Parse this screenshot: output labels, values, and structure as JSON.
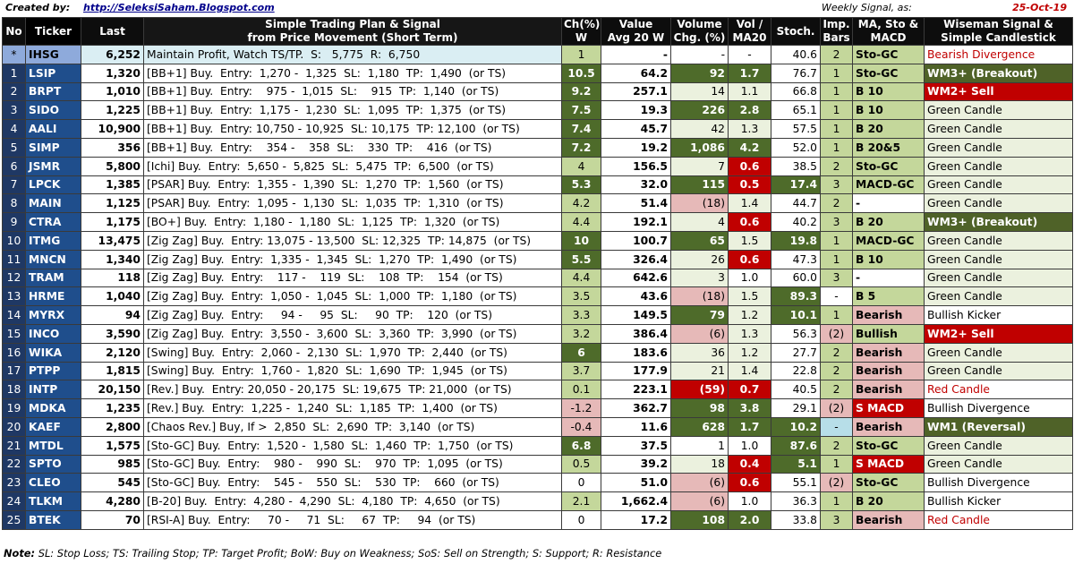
{
  "header": {
    "created_label": "Created by:",
    "url": "http://SeleksiSaham.Blogspot.com",
    "weekly_label": "Weekly Signal, as:",
    "date": "25-Oct-19"
  },
  "columns": {
    "no": "No",
    "ticker": "Ticker",
    "last": "Last",
    "plan_line1": "Simple Trading Plan & Signal",
    "plan_line2": "from Price Movement (Short Term)",
    "ch_line1": "Ch(%)",
    "ch_line2": "W",
    "value_line1": "Value",
    "value_line2": "Avg 20 W",
    "volume_line1": "Volume",
    "volume_line2": "Chg. (%)",
    "vol_line1": "Vol /",
    "vol_line2": "MA20",
    "stoch": "Stoch.",
    "imp_line1": "Imp.",
    "imp_line2": "Bars",
    "ma_line1": "MA, Sto &",
    "ma_line2": "MACD",
    "wise_line1": "Wiseman Signal &",
    "wise_line2": "Simple Candlestick"
  },
  "rows": [
    {
      "no": "*",
      "ticker": "IHSG",
      "last": "6,252",
      "plan": "Maintain Profit, Watch TS/TP.  S:   5,775  R:  6,750",
      "ch": "1",
      "value": "-",
      "volume": "-",
      "vol_ma": "-",
      "stoch": "40.6",
      "imp": "2",
      "ma": "Sto-GC",
      "wise": "Bearish Divergence",
      "idx": true,
      "cls": {
        "ch": "c-lg",
        "vol": "c-wht",
        "vma": "c-wht",
        "sto": "c-wht",
        "imp": "c-lg",
        "ma": "c-lg",
        "wise": "c-wht c-redtxt"
      }
    },
    {
      "no": "1",
      "ticker": "LSIP",
      "last": "1,320",
      "plan": "[BB+1] Buy.  Entry:  1,270 -  1,325  SL:  1,180  TP:  1,490  (or TS)",
      "ch": "10.5",
      "value": "64.2",
      "volume": "92",
      "vol_ma": "1.7",
      "stoch": "76.7",
      "imp": "1",
      "ma": "Sto-GC",
      "wise": "WM3+ (Breakout)",
      "cls": {
        "ch": "c-dg",
        "vol": "c-dg",
        "vma": "c-dg",
        "sto": "c-wht",
        "imp": "c-lg",
        "ma": "c-lg",
        "wise": "c-olive"
      }
    },
    {
      "no": "2",
      "ticker": "BRPT",
      "last": "1,010",
      "plan": "[BB+1] Buy.  Entry:    975 -  1,015  SL:    915  TP:  1,140  (or TS)",
      "ch": "9.2",
      "value": "257.1",
      "volume": "14",
      "vol_ma": "1.1",
      "stoch": "66.8",
      "imp": "1",
      "ma": "B 10",
      "wise": "WM2+ Sell",
      "cls": {
        "ch": "c-dg",
        "vol": "c-pale",
        "vma": "c-pale",
        "sto": "c-wht",
        "imp": "c-lg",
        "ma": "c-lg",
        "wise": "c-red"
      }
    },
    {
      "no": "3",
      "ticker": "SIDO",
      "last": "1,225",
      "plan": "[BB+1] Buy.  Entry:  1,175 -  1,230  SL:  1,095  TP:  1,375  (or TS)",
      "ch": "7.5",
      "value": "19.3",
      "volume": "226",
      "vol_ma": "2.8",
      "stoch": "65.1",
      "imp": "1",
      "ma": "B 10",
      "wise": "Green Candle",
      "cls": {
        "ch": "c-dg",
        "vol": "c-dg",
        "vma": "c-dg",
        "sto": "c-wht",
        "imp": "c-lg",
        "ma": "c-lg",
        "wise": "c-pale"
      }
    },
    {
      "no": "4",
      "ticker": "AALI",
      "last": "10,900",
      "plan": "[BB+1] Buy.  Entry: 10,750 - 10,925  SL: 10,175  TP: 12,100  (or TS)",
      "ch": "7.4",
      "value": "45.7",
      "volume": "42",
      "vol_ma": "1.3",
      "stoch": "57.5",
      "imp": "1",
      "ma": "B 20",
      "wise": "Green Candle",
      "cls": {
        "ch": "c-dg",
        "vol": "c-pale",
        "vma": "c-pale",
        "sto": "c-wht",
        "imp": "c-lg",
        "ma": "c-lg",
        "wise": "c-pale"
      }
    },
    {
      "no": "5",
      "ticker": "SIMP",
      "last": "356",
      "plan": "[BB+1] Buy.  Entry:    354 -    358  SL:    330  TP:    416  (or TS)",
      "ch": "7.2",
      "value": "19.2",
      "volume": "1,086",
      "vol_ma": "4.2",
      "stoch": "52.0",
      "imp": "1",
      "ma": "B 20&5",
      "wise": "Green Candle",
      "cls": {
        "ch": "c-dg",
        "vol": "c-dg",
        "vma": "c-dg",
        "sto": "c-wht",
        "imp": "c-lg",
        "ma": "c-lg",
        "wise": "c-pale"
      }
    },
    {
      "no": "6",
      "ticker": "JSMR",
      "last": "5,800",
      "plan": "[Ichi] Buy.  Entry:  5,650 -  5,825  SL:  5,475  TP:  6,500  (or TS)",
      "ch": "4",
      "value": "156.5",
      "volume": "7",
      "vol_ma": "0.6",
      "stoch": "38.5",
      "imp": "2",
      "ma": "Sto-GC",
      "wise": "Green Candle",
      "cls": {
        "ch": "c-lg",
        "vol": "c-pale",
        "vma": "c-red",
        "sto": "c-wht",
        "imp": "c-lg",
        "ma": "c-lg",
        "wise": "c-pale"
      }
    },
    {
      "no": "7",
      "ticker": "LPCK",
      "last": "1,385",
      "plan": "[PSAR] Buy.  Entry:  1,355 -  1,390  SL:  1,270  TP:  1,560  (or TS)",
      "ch": "5.3",
      "value": "32.0",
      "volume": "115",
      "vol_ma": "0.5",
      "stoch": "17.4",
      "imp": "3",
      "ma": "MACD-GC",
      "wise": "Green Candle",
      "cls": {
        "ch": "c-dg",
        "vol": "c-dg",
        "vma": "c-red",
        "sto": "c-dg",
        "imp": "c-lg",
        "ma": "c-lg",
        "wise": "c-pale"
      }
    },
    {
      "no": "8",
      "ticker": "MAIN",
      "last": "1,125",
      "plan": "[PSAR] Buy.  Entry:  1,095 -  1,130  SL:  1,035  TP:  1,310  (or TS)",
      "ch": "4.2",
      "value": "51.4",
      "volume": "(18)",
      "vol_ma": "1.4",
      "stoch": "44.7",
      "imp": "2",
      "ma": "-",
      "wise": "Green Candle",
      "cls": {
        "ch": "c-lg",
        "vol": "c-pink",
        "vma": "c-pale",
        "sto": "c-wht",
        "imp": "c-lg",
        "ma": "c-wht",
        "wise": "c-pale"
      }
    },
    {
      "no": "9",
      "ticker": "CTRA",
      "last": "1,175",
      "plan": "[BO+] Buy.  Entry:  1,180 -  1,180  SL:  1,125  TP:  1,320  (or TS)",
      "ch": "4.4",
      "value": "192.1",
      "volume": "4",
      "vol_ma": "0.6",
      "stoch": "40.2",
      "imp": "3",
      "ma": "B 20",
      "wise": "WM3+ (Breakout)",
      "cls": {
        "ch": "c-lg",
        "vol": "c-pale",
        "vma": "c-red",
        "sto": "c-wht",
        "imp": "c-lg",
        "ma": "c-lg",
        "wise": "c-olive"
      }
    },
    {
      "no": "10",
      "ticker": "ITMG",
      "last": "13,475",
      "plan": "[Zig Zag] Buy.  Entry: 13,075 - 13,500  SL: 12,325  TP: 14,875  (or TS)",
      "ch": "10",
      "value": "100.7",
      "volume": "65",
      "vol_ma": "1.5",
      "stoch": "19.8",
      "imp": "1",
      "ma": "MACD-GC",
      "wise": "Green Candle",
      "cls": {
        "ch": "c-dg",
        "vol": "c-dg",
        "vma": "c-pale",
        "sto": "c-dg",
        "imp": "c-lg",
        "ma": "c-lg",
        "wise": "c-pale"
      }
    },
    {
      "no": "11",
      "ticker": "MNCN",
      "last": "1,340",
      "plan": "[Zig Zag] Buy.  Entry:  1,335 -  1,345  SL:  1,270  TP:  1,490  (or TS)",
      "ch": "5.5",
      "value": "326.4",
      "volume": "26",
      "vol_ma": "0.6",
      "stoch": "47.3",
      "imp": "1",
      "ma": "B 10",
      "wise": "Green Candle",
      "cls": {
        "ch": "c-dg",
        "vol": "c-pale",
        "vma": "c-red",
        "sto": "c-wht",
        "imp": "c-lg",
        "ma": "c-lg",
        "wise": "c-pale"
      }
    },
    {
      "no": "12",
      "ticker": "TRAM",
      "last": "118",
      "plan": "[Zig Zag] Buy.  Entry:    117 -    119  SL:    108  TP:    154  (or TS)",
      "ch": "4.4",
      "value": "642.6",
      "volume": "3",
      "vol_ma": "1.0",
      "stoch": "60.0",
      "imp": "3",
      "ma": "-",
      "wise": "Green Candle",
      "cls": {
        "ch": "c-lg",
        "vol": "c-pale",
        "vma": "c-wht",
        "sto": "c-wht",
        "imp": "c-lg",
        "ma": "c-wht",
        "wise": "c-pale"
      }
    },
    {
      "no": "13",
      "ticker": "HRME",
      "last": "1,040",
      "plan": "[Zig Zag] Buy.  Entry:  1,050 -  1,045  SL:  1,000  TP:  1,180  (or TS)",
      "ch": "3.5",
      "value": "43.6",
      "volume": "(18)",
      "vol_ma": "1.5",
      "stoch": "89.3",
      "imp": "-",
      "ma": "B 5",
      "wise": "Green Candle",
      "cls": {
        "ch": "c-lg",
        "vol": "c-pink",
        "vma": "c-pale",
        "sto": "c-dg",
        "imp": "c-wht",
        "ma": "c-lg",
        "wise": "c-pale"
      }
    },
    {
      "no": "14",
      "ticker": "MYRX",
      "last": "94",
      "plan": "[Zig Zag] Buy.  Entry:     94 -     95  SL:     90  TP:    120  (or TS)",
      "ch": "3.3",
      "value": "149.5",
      "volume": "79",
      "vol_ma": "1.2",
      "stoch": "10.1",
      "imp": "1",
      "ma": "Bearish",
      "wise": "Bullish Kicker",
      "cls": {
        "ch": "c-lg",
        "vol": "c-dg",
        "vma": "c-pale",
        "sto": "c-dg",
        "imp": "c-lg",
        "ma": "c-pink",
        "wise": "c-wht"
      }
    },
    {
      "no": "15",
      "ticker": "INCO",
      "last": "3,590",
      "plan": "[Zig Zag] Buy.  Entry:  3,550 -  3,600  SL:  3,360  TP:  3,990  (or TS)",
      "ch": "3.2",
      "value": "386.4",
      "volume": "(6)",
      "vol_ma": "1.3",
      "stoch": "56.3",
      "imp": "(2)",
      "ma": "Bullish",
      "wise": "WM2+ Sell",
      "cls": {
        "ch": "c-lg",
        "vol": "c-pink",
        "vma": "c-pale",
        "sto": "c-wht",
        "imp": "c-pink",
        "ma": "c-lg",
        "wise": "c-red"
      }
    },
    {
      "no": "16",
      "ticker": "WIKA",
      "last": "2,120",
      "plan": "[Swing] Buy.  Entry:  2,060 -  2,130  SL:  1,970  TP:  2,440  (or TS)",
      "ch": "6",
      "value": "183.6",
      "volume": "36",
      "vol_ma": "1.2",
      "stoch": "27.7",
      "imp": "2",
      "ma": "Bearish",
      "wise": "Green Candle",
      "cls": {
        "ch": "c-dg",
        "vol": "c-pale",
        "vma": "c-pale",
        "sto": "c-wht",
        "imp": "c-lg",
        "ma": "c-pink",
        "wise": "c-pale"
      }
    },
    {
      "no": "17",
      "ticker": "PTPP",
      "last": "1,815",
      "plan": "[Swing] Buy.  Entry:  1,760 -  1,820  SL:  1,690  TP:  1,945  (or TS)",
      "ch": "3.7",
      "value": "177.9",
      "volume": "21",
      "vol_ma": "1.4",
      "stoch": "22.8",
      "imp": "2",
      "ma": "Bearish",
      "wise": "Green Candle",
      "cls": {
        "ch": "c-lg",
        "vol": "c-pale",
        "vma": "c-pale",
        "sto": "c-wht",
        "imp": "c-lg",
        "ma": "c-pink",
        "wise": "c-pale"
      }
    },
    {
      "no": "18",
      "ticker": "INTP",
      "last": "20,150",
      "plan": "[Rev.] Buy.  Entry: 20,050 - 20,175  SL: 19,675  TP: 21,000  (or TS)",
      "ch": "0.1",
      "value": "223.1",
      "volume": "(59)",
      "vol_ma": "0.7",
      "stoch": "40.5",
      "imp": "2",
      "ma": "Bearish",
      "wise": "Red Candle",
      "cls": {
        "ch": "c-lg",
        "vol": "c-red",
        "vma": "c-red",
        "sto": "c-wht",
        "imp": "c-lg",
        "ma": "c-pink",
        "wise": "c-wht c-redtxt"
      }
    },
    {
      "no": "19",
      "ticker": "MDKA",
      "last": "1,235",
      "plan": "[Rev.] Buy.  Entry:  1,225 -  1,240  SL:  1,185  TP:  1,400  (or TS)",
      "ch": "-1.2",
      "value": "362.7",
      "volume": "98",
      "vol_ma": "3.8",
      "stoch": "29.1",
      "imp": "(2)",
      "ma": "S MACD",
      "wise": "Bullish Divergence",
      "cls": {
        "ch": "c-pink",
        "vol": "c-dg",
        "vma": "c-dg",
        "sto": "c-wht",
        "imp": "c-pink",
        "ma": "c-red",
        "wise": "c-wht"
      }
    },
    {
      "no": "20",
      "ticker": "KAEF",
      "last": "2,800",
      "plan": "[Chaos Rev.] Buy, If >  2,850  SL:  2,690  TP:  3,140  (or TS)",
      "ch": "-0.4",
      "value": "11.6",
      "volume": "628",
      "vol_ma": "1.7",
      "stoch": "10.2",
      "imp": "-",
      "ma": "Bearish",
      "wise": "WM1 (Reversal)",
      "cls": {
        "ch": "c-pink",
        "vol": "c-dg",
        "vma": "c-dg",
        "sto": "c-dg",
        "imp": "c-ltblue",
        "ma": "c-pink",
        "wise": "c-olive"
      }
    },
    {
      "no": "21",
      "ticker": "MTDL",
      "last": "1,575",
      "plan": "[Sto-GC] Buy.  Entry:  1,520 -  1,580  SL:  1,460  TP:  1,750  (or TS)",
      "ch": "6.8",
      "value": "37.5",
      "volume": "1",
      "vol_ma": "1.0",
      "stoch": "87.6",
      "imp": "2",
      "ma": "Sto-GC",
      "wise": "Green Candle",
      "cls": {
        "ch": "c-dg",
        "vol": "c-wht",
        "vma": "c-wht",
        "sto": "c-dg",
        "imp": "c-lg",
        "ma": "c-lg",
        "wise": "c-pale"
      }
    },
    {
      "no": "22",
      "ticker": "SPTO",
      "last": "985",
      "plan": "[Sto-GC] Buy.  Entry:    980 -    990  SL:    970  TP:  1,095  (or TS)",
      "ch": "0.5",
      "value": "39.2",
      "volume": "18",
      "vol_ma": "0.4",
      "stoch": "5.1",
      "imp": "1",
      "ma": "S MACD",
      "wise": "Green Candle",
      "cls": {
        "ch": "c-lg",
        "vol": "c-pale",
        "vma": "c-red",
        "sto": "c-dg",
        "imp": "c-lg",
        "ma": "c-red",
        "wise": "c-pale"
      }
    },
    {
      "no": "23",
      "ticker": "CLEO",
      "last": "545",
      "plan": "[Sto-GC] Buy.  Entry:    545 -    550  SL:    530  TP:    660  (or TS)",
      "ch": "0",
      "value": "51.0",
      "volume": "(6)",
      "vol_ma": "0.6",
      "stoch": "55.1",
      "imp": "(2)",
      "ma": "Sto-GC",
      "wise": "Bullish Divergence",
      "cls": {
        "ch": "c-wht",
        "vol": "c-pink",
        "vma": "c-red",
        "sto": "c-wht",
        "imp": "c-pink",
        "ma": "c-lg",
        "wise": "c-wht"
      }
    },
    {
      "no": "24",
      "ticker": "TLKM",
      "last": "4,280",
      "plan": "[B-20] Buy.  Entry:  4,280 -  4,290  SL:  4,180  TP:  4,650  (or TS)",
      "ch": "2.1",
      "value": "1,662.4",
      "volume": "(6)",
      "vol_ma": "1.0",
      "stoch": "36.3",
      "imp": "1",
      "ma": "B 20",
      "wise": "Bullish Kicker",
      "cls": {
        "ch": "c-lg",
        "vol": "c-pink",
        "vma": "c-wht",
        "sto": "c-wht",
        "imp": "c-lg",
        "ma": "c-lg",
        "wise": "c-wht"
      }
    },
    {
      "no": "25",
      "ticker": "BTEK",
      "last": "70",
      "plan": "[RSI-A] Buy.  Entry:     70 -     71  SL:     67  TP:     94  (or TS)",
      "ch": "0",
      "value": "17.2",
      "volume": "108",
      "vol_ma": "2.0",
      "stoch": "33.8",
      "imp": "3",
      "ma": "Bearish",
      "wise": "Red Candle",
      "cls": {
        "ch": "c-wht",
        "vol": "c-dg",
        "vma": "c-dg",
        "sto": "c-wht",
        "imp": "c-lg",
        "ma": "c-pink",
        "wise": "c-wht c-redtxt"
      }
    }
  ],
  "note": {
    "label": "Note:",
    "text": "SL: Stop Loss; TS: Trailing Stop; TP: Target Profit; BoW: Buy on Weakness; SoS: Sell on Strength; S: Support; R: Resistance"
  }
}
